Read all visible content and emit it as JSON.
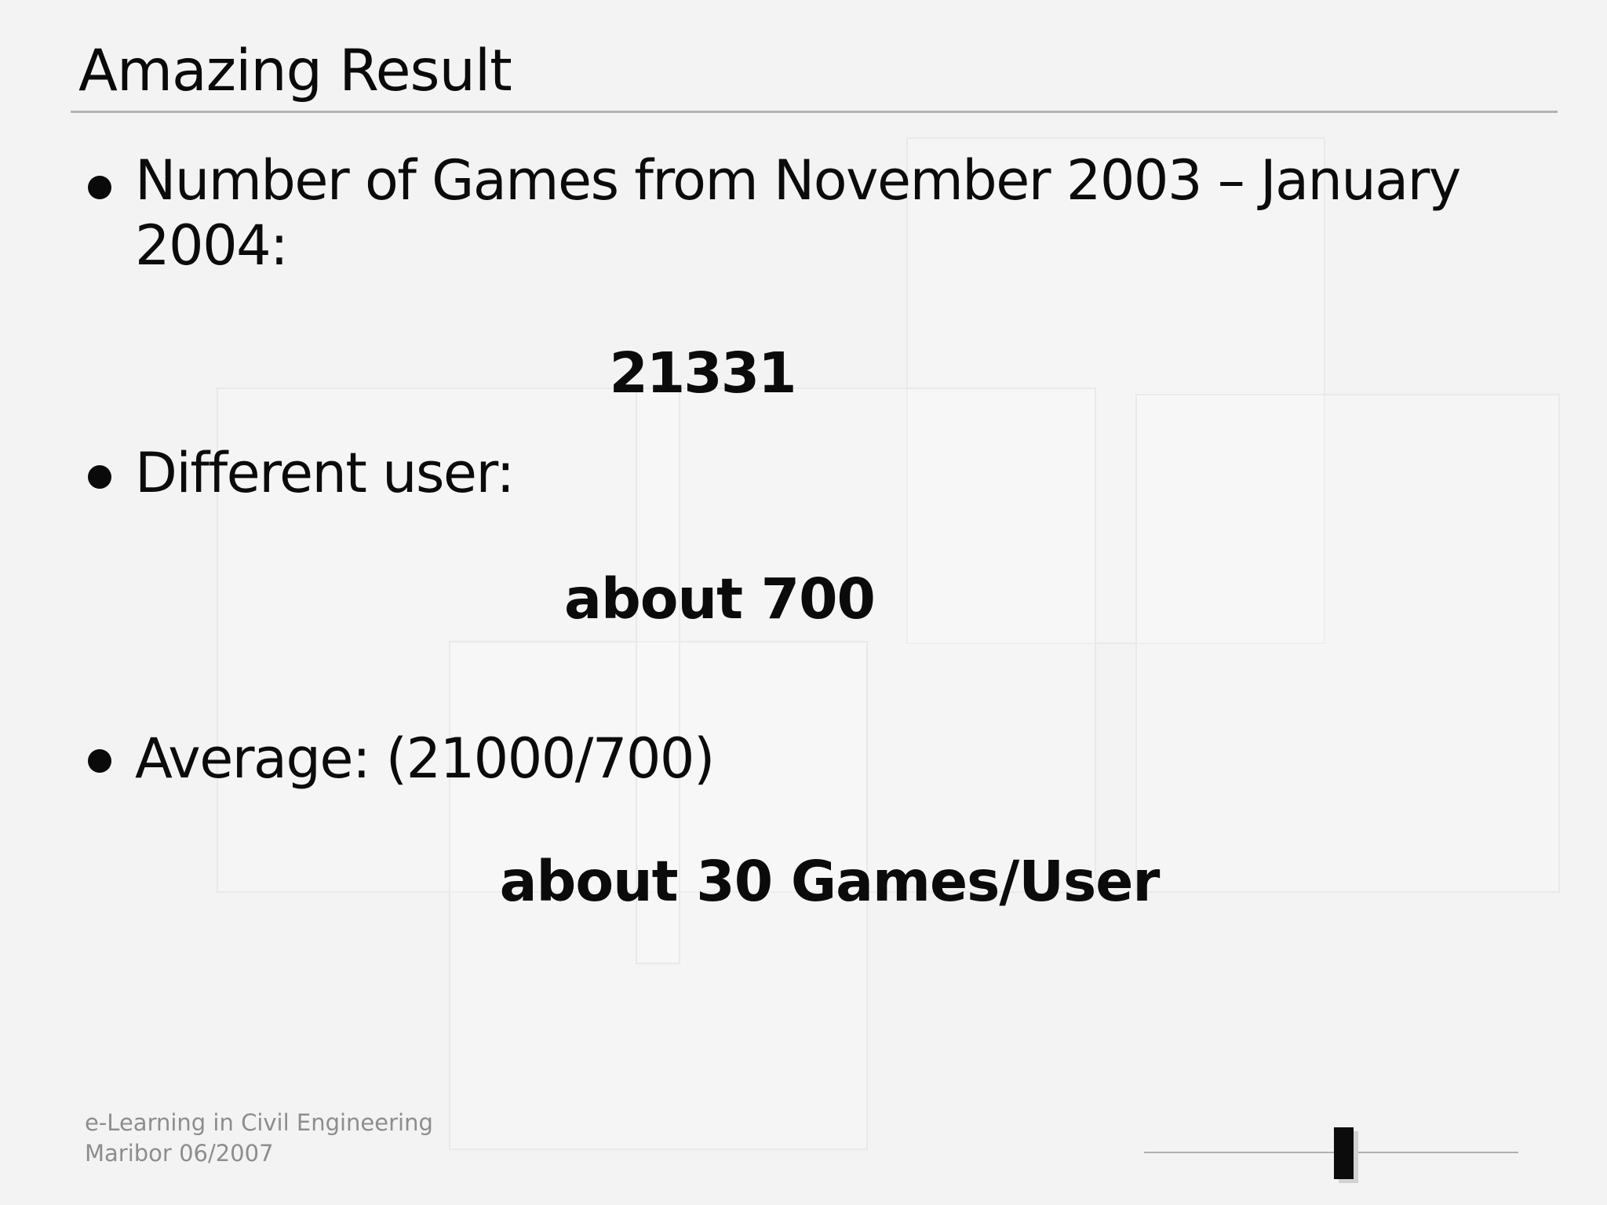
{
  "slide": {
    "title": "Amazing Result",
    "bullets": [
      {
        "line1": "Number of Games from November 2003 – January",
        "line2": "2004:",
        "result": "21331"
      },
      {
        "line1": "Different user:",
        "result": "about 700"
      },
      {
        "line1": "Average: (21000/700)",
        "result": "about 30 Games/User"
      }
    ],
    "footer": {
      "line1": "e-Learning in Civil Engineering",
      "line2": "Maribor 06/2007"
    },
    "colors": {
      "background": "#f4f3f3",
      "text": "#0a0a0a",
      "muted_text": "#8d8d8d",
      "title_rule": "#b3b3b3",
      "frame_border": "#e9e9e9",
      "progress_line": "#b0b0b0",
      "progress_marker": "#0c0c0c"
    }
  }
}
